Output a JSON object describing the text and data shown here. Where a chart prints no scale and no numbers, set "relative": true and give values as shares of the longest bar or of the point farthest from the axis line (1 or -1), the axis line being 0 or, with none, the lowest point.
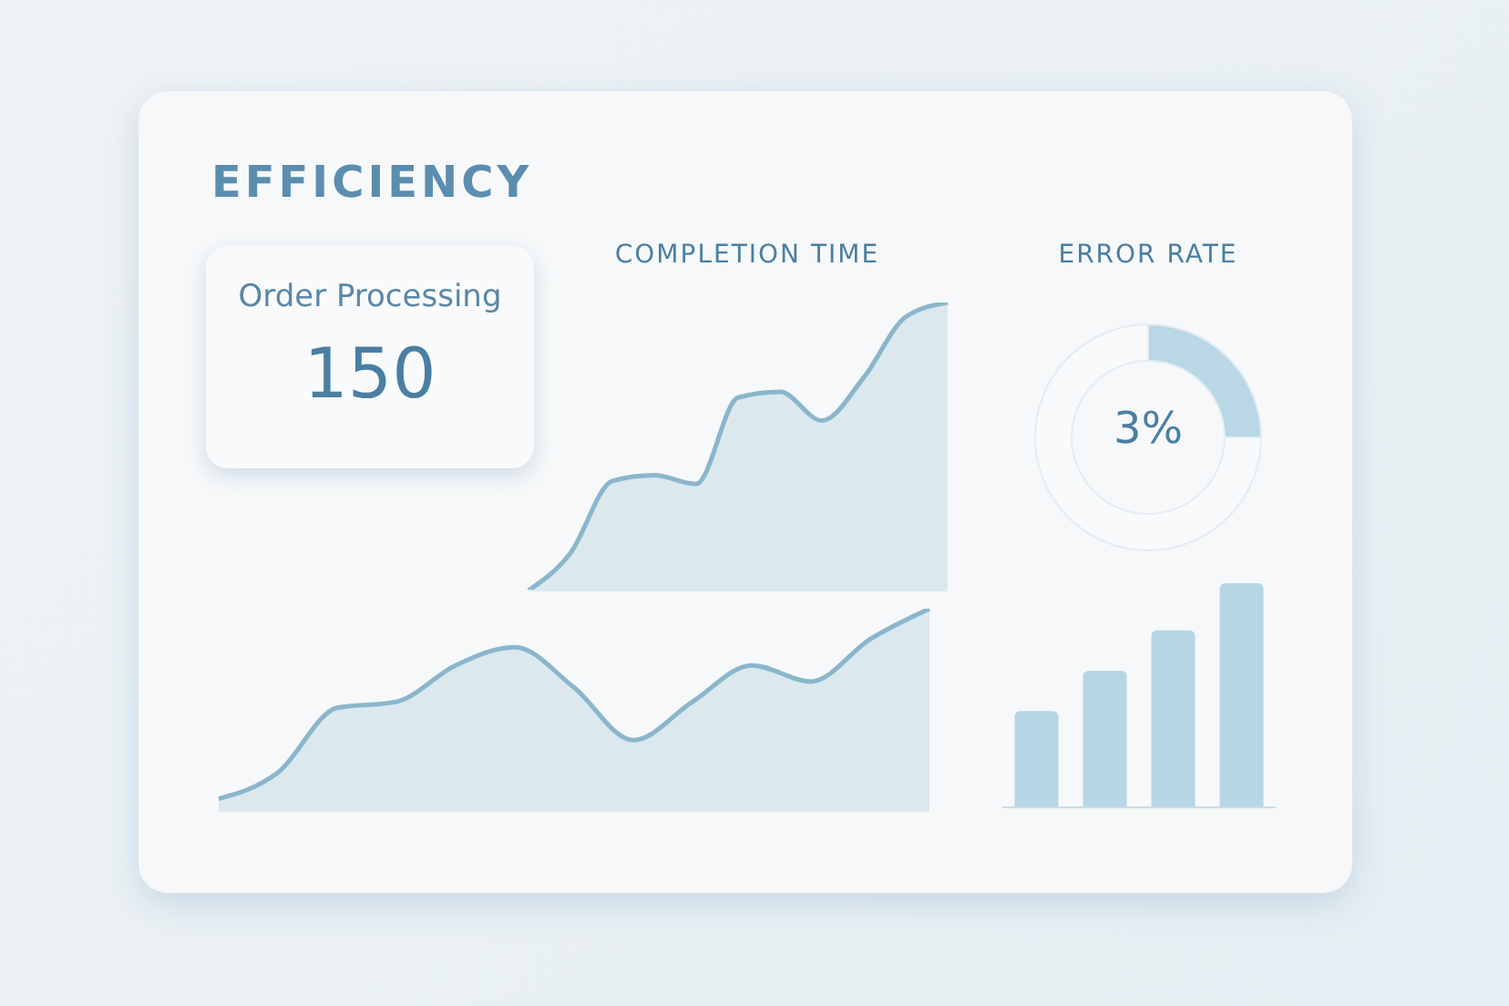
{
  "chart_data": [
    {
      "type": "other",
      "title": "EFFICIENCY",
      "annotations": [
        "Order Processing",
        "150"
      ]
    },
    {
      "type": "area",
      "title": "COMPLETION TIME",
      "relative": true,
      "categories": [
        null,
        null,
        null,
        null,
        null,
        null,
        null,
        null,
        null,
        null,
        null
      ],
      "series": [
        {
          "color": "#8ab6cc",
          "values": [
            0,
            0.13,
            0.38,
            0.4,
            0.37,
            0.67,
            0.69,
            0.59,
            0.74,
            0.95,
            1
          ]
        }
      ]
    },
    {
      "type": "donut",
      "title": "ERROR RATE",
      "categories": [
        null,
        null
      ],
      "values": [
        25,
        75
      ],
      "colors": [
        "#b9d7e5",
        "#f8fafb"
      ],
      "annotations": [
        "3%"
      ]
    },
    {
      "type": "area",
      "relative": true,
      "categories": [
        null,
        null,
        null,
        null,
        null,
        null,
        null,
        null,
        null,
        null,
        null,
        null,
        null
      ],
      "series": [
        {
          "color": "#8ab6cc",
          "values": [
            0.06,
            0.19,
            0.51,
            0.54,
            0.72,
            0.81,
            0.61,
            0.35,
            0.54,
            0.72,
            0.64,
            0.85,
            1
          ]
        }
      ]
    },
    {
      "type": "bar",
      "relative": true,
      "categories": [
        null,
        null,
        null,
        null
      ],
      "values": [
        0.43,
        0.61,
        0.79,
        1
      ],
      "color": "#b7d6e4"
    }
  ]
}
